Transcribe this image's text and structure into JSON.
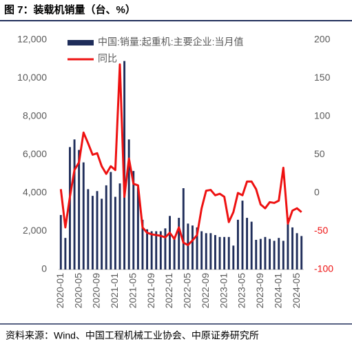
{
  "chart_data": {
    "type": "bar_line",
    "title": "图 7：装载机销量（台、%）",
    "source": "资料来源：Wind、中国工程机械工业协会、中原证券研究所",
    "categories": [
      "2020-01",
      null,
      null,
      null,
      "2020-05",
      null,
      null,
      null,
      "2020-09",
      null,
      null,
      null,
      "2021-01",
      null,
      null,
      null,
      "2021-05",
      null,
      null,
      null,
      "2021-09",
      null,
      null,
      null,
      "2022-01",
      null,
      null,
      null,
      "2022-05",
      null,
      null,
      null,
      "2022-09",
      null,
      null,
      null,
      "2023-01",
      null,
      null,
      null,
      "2023-05",
      null,
      null,
      null,
      "2023-09",
      null,
      null,
      null,
      "2024-01",
      null,
      null,
      null,
      "2024-05",
      null
    ],
    "series": [
      {
        "name": "中国:销量:起重机:主要企业:当月值",
        "color": "#1f2d5a",
        "axis": "y",
        "values": [
          2850,
          1650,
          6400,
          6800,
          6250,
          5600,
          4200,
          3850,
          4100,
          3700,
          4400,
          5100,
          3800,
          4500,
          10900,
          6800,
          5150,
          4300,
          2600,
          2100,
          2000,
          2000,
          2000,
          2150,
          2800,
          1700,
          2700,
          4250,
          2400,
          2300,
          2200,
          2000,
          1900,
          1900,
          1800,
          1700,
          1700,
          1700,
          1250,
          2600,
          3600,
          2700,
          2500,
          1550,
          1600,
          1700,
          1600,
          1500,
          1650,
          1500,
          2700,
          2200,
          1900,
          1750
        ]
      },
      {
        "name": "同比",
        "color": "#ee1111",
        "axis": "y2",
        "values": [
          5,
          -45,
          -5,
          30,
          40,
          79,
          65,
          50,
          52,
          35,
          25,
          35,
          30,
          168,
          -5,
          45,
          12,
          10,
          -45,
          -52,
          -54,
          -55,
          -56,
          -58,
          -52,
          -60,
          -45,
          -65,
          -68,
          -62,
          -55,
          -20,
          3,
          4,
          -3,
          -1,
          -5,
          -38,
          -25,
          0,
          -3,
          15,
          15,
          5,
          -15,
          -20,
          -12,
          -13,
          -10,
          33,
          -40,
          -23,
          -20,
          -25
        ]
      }
    ],
    "ylim": [
      0,
      12000
    ],
    "yticks": [
      0,
      {
        "value": 2000,
        "label": "2,000"
      },
      {
        "value": 4000,
        "label": "4,000"
      },
      {
        "value": 6000,
        "label": "6,000"
      },
      {
        "value": 8000,
        "label": "8,000"
      },
      {
        "value": 10000,
        "label": "10,000"
      },
      {
        "value": 12000,
        "label": "12,000"
      }
    ],
    "y2lim": [
      -100,
      200
    ],
    "y2ticks": [
      -100,
      -50,
      0,
      50,
      100,
      150,
      200
    ],
    "legend": "top"
  }
}
